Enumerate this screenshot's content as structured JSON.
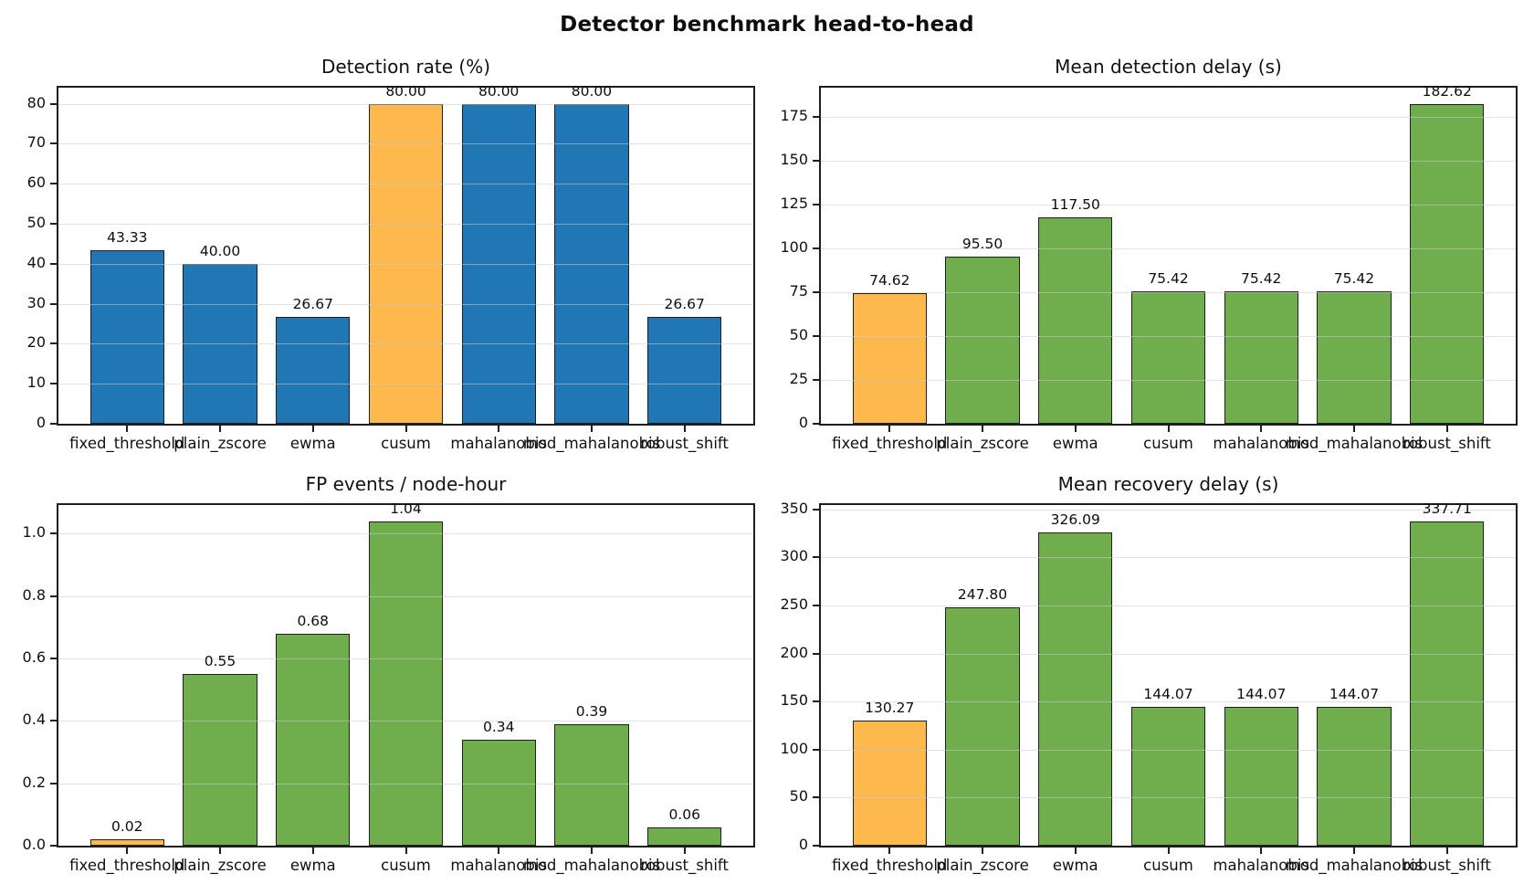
{
  "figure_title": "Detector benchmark head-to-head",
  "colors": {
    "blue": "#2077b4",
    "orange": "#fdb94e",
    "green": "#6fad4d",
    "edge": "#1f1f1f",
    "grid": "#cbcbcb",
    "spine": "#1e1e1e"
  },
  "chart_data": [
    {
      "id": "detection-rate",
      "type": "bar",
      "title": "Detection rate (%)",
      "categories": [
        "fixed_threshold",
        "plain_zscore",
        "ewma",
        "cusum",
        "mahalanobis",
        "mod_mahalanobis",
        "robust_shift"
      ],
      "values": [
        43.33,
        40.0,
        26.67,
        80.0,
        80.0,
        80.0,
        26.67
      ],
      "value_labels": [
        "43.33",
        "40.00",
        "26.67",
        "80.00",
        "80.00",
        "80.00",
        "26.67"
      ],
      "bar_color_keys": [
        "blue",
        "blue",
        "blue",
        "orange",
        "blue",
        "blue",
        "blue"
      ],
      "yticks": [
        0,
        10,
        20,
        30,
        40,
        50,
        60,
        70,
        80
      ],
      "ytick_labels": [
        "0",
        "10",
        "20",
        "30",
        "40",
        "50",
        "60",
        "70",
        "80"
      ],
      "ylim": [
        0,
        84.0
      ],
      "xlabel": "",
      "ylabel": "",
      "grid": true,
      "legend": null
    },
    {
      "id": "mean-detection-delay",
      "type": "bar",
      "title": "Mean detection delay (s)",
      "categories": [
        "fixed_threshold",
        "plain_zscore",
        "ewma",
        "cusum",
        "mahalanobis",
        "mod_mahalanobis",
        "robust_shift"
      ],
      "values": [
        74.62,
        95.5,
        117.5,
        75.42,
        75.42,
        75.42,
        182.62
      ],
      "value_labels": [
        "74.62",
        "95.50",
        "117.50",
        "75.42",
        "75.42",
        "75.42",
        "182.62"
      ],
      "bar_color_keys": [
        "orange",
        "green",
        "green",
        "green",
        "green",
        "green",
        "green"
      ],
      "yticks": [
        0,
        25,
        50,
        75,
        100,
        125,
        150,
        175
      ],
      "ytick_labels": [
        "0",
        "25",
        "50",
        "75",
        "100",
        "125",
        "150",
        "175"
      ],
      "ylim": [
        0,
        191.75
      ],
      "xlabel": "",
      "ylabel": "",
      "grid": true,
      "legend": null
    },
    {
      "id": "fp-events-node-hour",
      "type": "bar",
      "title": "FP events / node-hour",
      "categories": [
        "fixed_threshold",
        "plain_zscore",
        "ewma",
        "cusum",
        "mahalanobis",
        "mod_mahalanobis",
        "robust_shift"
      ],
      "values": [
        0.02,
        0.55,
        0.68,
        1.04,
        0.34,
        0.39,
        0.06
      ],
      "value_labels": [
        "0.02",
        "0.55",
        "0.68",
        "1.04",
        "0.34",
        "0.39",
        "0.06"
      ],
      "bar_color_keys": [
        "orange",
        "green",
        "green",
        "green",
        "green",
        "green",
        "green"
      ],
      "yticks": [
        0,
        0.2,
        0.4,
        0.6,
        0.8,
        1.0
      ],
      "ytick_labels": [
        "0.0",
        "0.2",
        "0.4",
        "0.6",
        "0.8",
        "1.0"
      ],
      "ylim": [
        0,
        1.092
      ],
      "xlabel": "",
      "ylabel": "",
      "grid": true,
      "legend": null
    },
    {
      "id": "mean-recovery-delay",
      "type": "bar",
      "title": "Mean recovery delay (s)",
      "categories": [
        "fixed_threshold",
        "plain_zscore",
        "ewma",
        "cusum",
        "mahalanobis",
        "mod_mahalanobis",
        "robust_shift"
      ],
      "values": [
        130.27,
        247.8,
        326.09,
        144.07,
        144.07,
        144.07,
        337.71
      ],
      "value_labels": [
        "130.27",
        "247.80",
        "326.09",
        "144.07",
        "144.07",
        "144.07",
        "337.71"
      ],
      "bar_color_keys": [
        "orange",
        "green",
        "green",
        "green",
        "green",
        "green",
        "green"
      ],
      "yticks": [
        0,
        50,
        100,
        150,
        200,
        250,
        300,
        350
      ],
      "ytick_labels": [
        "0",
        "50",
        "100",
        "150",
        "200",
        "250",
        "300",
        "350"
      ],
      "ylim": [
        0,
        354.6
      ],
      "xlabel": "",
      "ylabel": "",
      "grid": true,
      "legend": null
    }
  ]
}
